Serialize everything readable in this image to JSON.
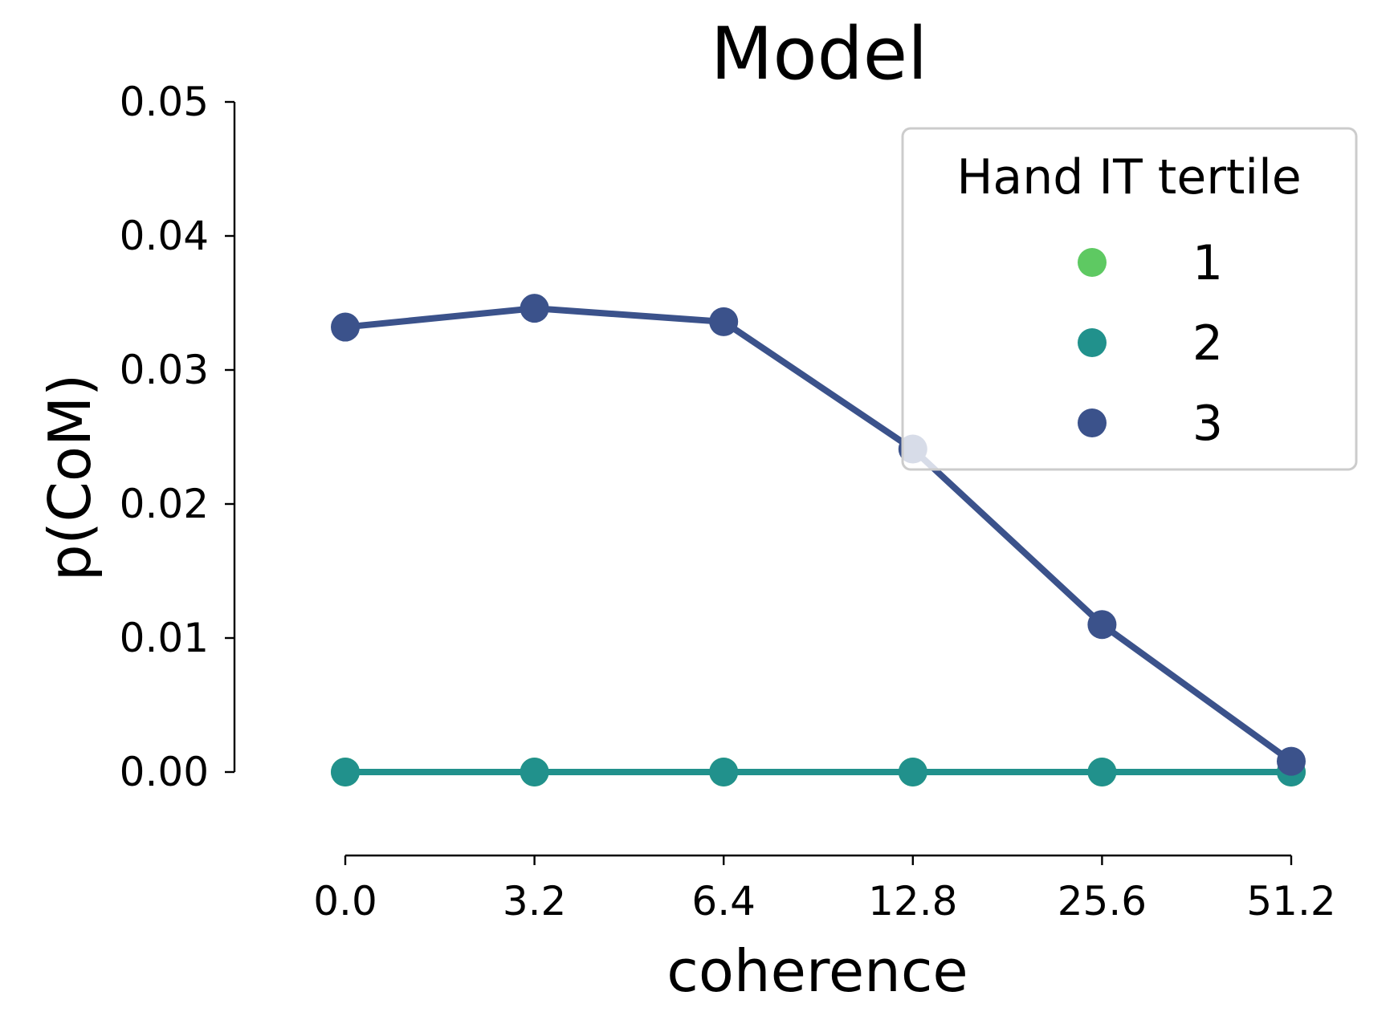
{
  "chart_data": {
    "type": "line",
    "title": "Model",
    "xlabel": "coherence",
    "ylabel": "p(CoM)",
    "categories": [
      "0.0",
      "3.2",
      "6.4",
      "12.8",
      "25.6",
      "51.2"
    ],
    "ylim": [
      -0.005,
      0.05
    ],
    "yticks": [
      "0.00",
      "0.01",
      "0.02",
      "0.03",
      "0.04",
      "0.05"
    ],
    "ytick_values": [
      0.0,
      0.01,
      0.02,
      0.03,
      0.04,
      0.05
    ],
    "grid": false,
    "legend": {
      "title": "Hand IT tertile",
      "placement": "top-right"
    },
    "series": [
      {
        "name": "1",
        "color": "#5ec962",
        "values": [
          0.0,
          0.0,
          0.0,
          0.0,
          0.0,
          0.0
        ]
      },
      {
        "name": "2",
        "color": "#21918c",
        "values": [
          0.0,
          0.0,
          0.0,
          0.0,
          0.0,
          0.0
        ]
      },
      {
        "name": "3",
        "color": "#3b528b",
        "values": [
          0.0332,
          0.0346,
          0.0336,
          0.0241,
          0.011,
          0.0008
        ]
      }
    ]
  }
}
